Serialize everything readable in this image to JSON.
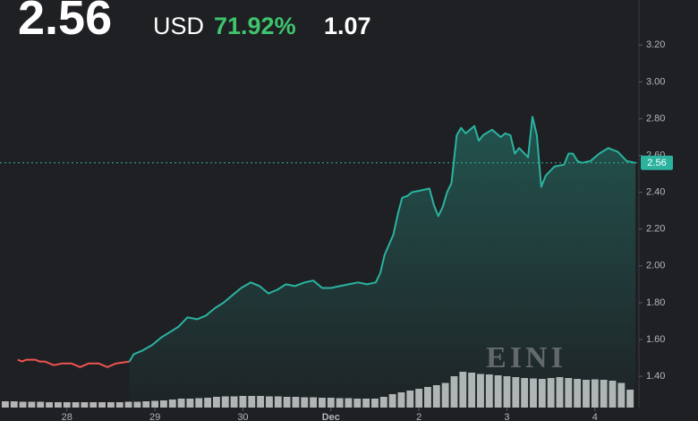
{
  "chart_data": {
    "type": "line",
    "price": "2.56",
    "currency": "USD",
    "change_pct": "71.92%",
    "change": "1.07",
    "watermark": "EINI",
    "last_price": 2.56,
    "last_price_color": "#2bb3a0",
    "xlim": [
      -0.76,
      6.5
    ],
    "xticks": [
      {
        "value": 0,
        "label": "28"
      },
      {
        "value": 1,
        "label": "29"
      },
      {
        "value": 2,
        "label": "30"
      },
      {
        "value": 3,
        "label": "Dec"
      },
      {
        "value": 4,
        "label": "2"
      },
      {
        "value": 5,
        "label": "3"
      },
      {
        "value": 6,
        "label": "4"
      }
    ],
    "ylim": [
      1.23,
      3.25
    ],
    "yticks": [
      {
        "value": 1.4,
        "label": "1.40"
      },
      {
        "value": 1.6,
        "label": "1.60"
      },
      {
        "value": 1.8,
        "label": "1.80"
      },
      {
        "value": 2.0,
        "label": "2.00"
      },
      {
        "value": 2.2,
        "label": "2.20"
      },
      {
        "value": 2.4,
        "label": "2.40"
      },
      {
        "value": 2.6,
        "label": "2.60"
      },
      {
        "value": 2.8,
        "label": "2.80"
      },
      {
        "value": 3.0,
        "label": "3.00"
      },
      {
        "value": 3.2,
        "label": "3.20"
      }
    ],
    "series": [
      {
        "color": "#ef5350",
        "x": [
          -0.56,
          -0.51,
          -0.46,
          -0.36,
          -0.31,
          -0.25,
          -0.15,
          -0.05,
          0.05,
          0.15,
          0.25,
          0.36,
          0.46,
          0.56,
          0.71
        ],
        "values": [
          1.49,
          1.48,
          1.49,
          1.49,
          1.48,
          1.48,
          1.46,
          1.47,
          1.47,
          1.45,
          1.47,
          1.47,
          1.45,
          1.47,
          1.48
        ]
      },
      {
        "color": "#2bb3a0",
        "x": [
          0.71,
          0.76,
          0.86,
          0.97,
          1.07,
          1.17,
          1.27,
          1.37,
          1.48,
          1.58,
          1.68,
          1.78,
          1.88,
          1.98,
          2.09,
          2.19,
          2.29,
          2.39,
          2.49,
          2.59,
          2.7,
          2.8,
          2.9,
          3.0,
          3.1,
          3.2,
          3.31,
          3.41,
          3.51,
          3.56,
          3.61,
          3.71,
          3.76,
          3.81,
          3.87,
          3.92,
          4.02,
          4.12,
          4.17,
          4.22,
          4.27,
          4.32,
          4.37,
          4.43,
          4.48,
          4.53,
          4.58,
          4.63,
          4.68,
          4.73,
          4.83,
          4.93,
          4.98,
          5.04,
          5.09,
          5.14,
          5.24,
          5.29,
          5.34,
          5.39,
          5.44,
          5.54,
          5.65,
          5.7,
          5.75,
          5.8,
          5.85,
          5.95,
          6.05,
          6.15,
          6.26,
          6.36,
          6.46
        ],
        "values": [
          1.48,
          1.52,
          1.54,
          1.57,
          1.61,
          1.64,
          1.67,
          1.72,
          1.71,
          1.73,
          1.77,
          1.8,
          1.84,
          1.88,
          1.91,
          1.89,
          1.85,
          1.87,
          1.9,
          1.89,
          1.91,
          1.92,
          1.88,
          1.88,
          1.89,
          1.9,
          1.91,
          1.9,
          1.91,
          1.96,
          2.06,
          2.17,
          2.28,
          2.37,
          2.38,
          2.4,
          2.41,
          2.42,
          2.33,
          2.27,
          2.32,
          2.4,
          2.45,
          2.71,
          2.75,
          2.72,
          2.74,
          2.76,
          2.68,
          2.71,
          2.74,
          2.7,
          2.72,
          2.71,
          2.61,
          2.64,
          2.59,
          2.81,
          2.71,
          2.43,
          2.49,
          2.54,
          2.55,
          2.61,
          2.61,
          2.57,
          2.56,
          2.57,
          2.61,
          2.64,
          2.62,
          2.57,
          2.56
        ]
      }
    ],
    "volume": {
      "color": "#d0d0d0",
      "vlim": [
        0,
        100
      ],
      "x": [
        -0.7,
        -0.6,
        -0.5,
        -0.4,
        -0.3,
        -0.2,
        -0.1,
        0.0,
        0.1,
        0.2,
        0.3,
        0.4,
        0.5,
        0.6,
        0.7,
        0.8,
        0.9,
        1.0,
        1.1,
        1.2,
        1.3,
        1.4,
        1.5,
        1.6,
        1.7,
        1.8,
        1.9,
        2.0,
        2.1,
        2.2,
        2.3,
        2.4,
        2.5,
        2.6,
        2.7,
        2.8,
        2.9,
        3.0,
        3.1,
        3.2,
        3.3,
        3.4,
        3.5,
        3.6,
        3.7,
        3.8,
        3.9,
        4.0,
        4.1,
        4.2,
        4.3,
        4.4,
        4.5,
        4.6,
        4.7,
        4.8,
        4.9,
        5.0,
        5.1,
        5.2,
        5.3,
        5.4,
        5.5,
        5.6,
        5.7,
        5.8,
        5.9,
        6.0,
        6.1,
        6.2,
        6.3,
        6.4
      ],
      "values": [
        14,
        14,
        13,
        13,
        13,
        12,
        12,
        12,
        12,
        12,
        12,
        12,
        12,
        12,
        13,
        13,
        14,
        15,
        16,
        18,
        20,
        20,
        21,
        22,
        24,
        25,
        25,
        26,
        26,
        26,
        25,
        25,
        24,
        24,
        23,
        23,
        22,
        22,
        21,
        21,
        20,
        20,
        20,
        24,
        30,
        34,
        38,
        42,
        46,
        50,
        55,
        70,
        80,
        78,
        75,
        74,
        72,
        70,
        68,
        66,
        65,
        64,
        66,
        68,
        66,
        64,
        62,
        63,
        62,
        60,
        55,
        40
      ]
    }
  }
}
